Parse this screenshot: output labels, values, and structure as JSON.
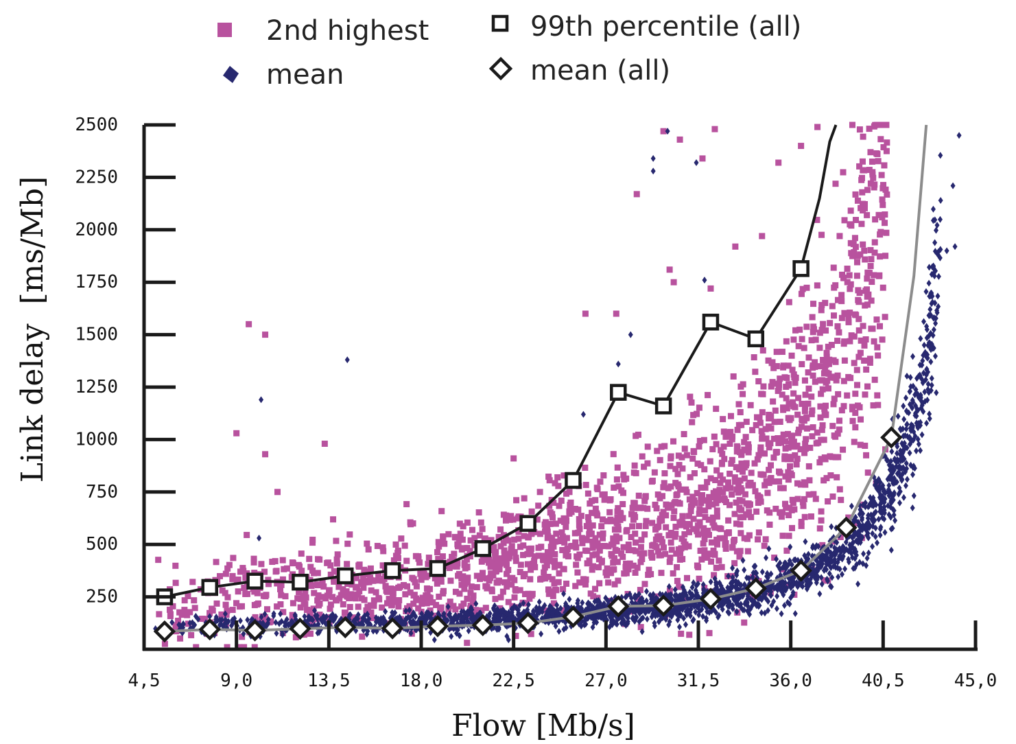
{
  "chart_data": {
    "type": "scatter",
    "xlabel": "Flow [Mb/s]",
    "ylabel": "Link delay  [ms/Mb]",
    "xlim": [
      4.5,
      45.0
    ],
    "ylim": [
      0,
      2500
    ],
    "x_ticks": [
      4.5,
      9.0,
      13.5,
      18.0,
      22.5,
      27.0,
      31.5,
      36.0,
      40.5,
      45.0
    ],
    "x_tick_labels": [
      "4,5",
      "9,0",
      "13,5",
      "18,0",
      "22,5",
      "27,0",
      "31,5",
      "36,0",
      "40,5",
      "45,0"
    ],
    "y_ticks": [
      250,
      500,
      750,
      1000,
      1250,
      1500,
      1750,
      2000,
      2250,
      2500
    ],
    "y_tick_labels": [
      "250",
      "500",
      "750",
      "1000",
      "1250",
      "1500",
      "1750",
      "2000",
      "2250",
      "2500"
    ],
    "grid": false,
    "legend_position": "top",
    "colors": {
      "second_highest": "#b8529e",
      "mean": "#27286f",
      "line_99": "#1a1a1a",
      "line_mean_all": "#8c8c8c"
    },
    "series": [
      {
        "name": "2nd highest",
        "kind": "scatter",
        "marker": "square",
        "color": "#b8529e",
        "trend": [
          [
            5.0,
            180
          ],
          [
            7.0,
            220
          ],
          [
            9.0,
            250
          ],
          [
            11.0,
            260
          ],
          [
            13.0,
            270
          ],
          [
            15.0,
            290
          ],
          [
            17.0,
            310
          ],
          [
            19.0,
            330
          ],
          [
            21.0,
            360
          ],
          [
            23.0,
            420
          ],
          [
            25.0,
            480
          ],
          [
            27.0,
            530
          ],
          [
            29.0,
            580
          ],
          [
            31.0,
            650
          ],
          [
            33.0,
            760
          ],
          [
            35.0,
            900
          ],
          [
            36.5,
            1050
          ],
          [
            38.0,
            1250
          ],
          [
            39.0,
            1500
          ],
          [
            39.8,
            1800
          ],
          [
            40.5,
            2100
          ]
        ],
        "outliers": [
          [
            9.6,
            1550
          ],
          [
            10.4,
            1500
          ],
          [
            9.0,
            1030
          ],
          [
            10.4,
            930
          ],
          [
            11.0,
            750
          ],
          [
            13.3,
            980
          ],
          [
            9.5,
            545
          ],
          [
            17.6,
            600
          ],
          [
            22.5,
            910
          ],
          [
            26.0,
            1600
          ],
          [
            27.5,
            1600
          ],
          [
            28.5,
            2170
          ],
          [
            29.8,
            2470
          ],
          [
            30.6,
            2430
          ],
          [
            30.1,
            1810
          ],
          [
            31.7,
            2340
          ],
          [
            32.3,
            2480
          ],
          [
            33.3,
            1920
          ],
          [
            34.6,
            1970
          ],
          [
            35.4,
            2320
          ],
          [
            37.3,
            2490
          ],
          [
            36.5,
            2400
          ],
          [
            32.1,
            1720
          ],
          [
            30.3,
            1750
          ]
        ]
      },
      {
        "name": "mean",
        "kind": "scatter",
        "marker": "diamond",
        "color": "#27286f",
        "trend": [
          [
            5.0,
            110
          ],
          [
            9.0,
            120
          ],
          [
            13.5,
            125
          ],
          [
            18.0,
            130
          ],
          [
            22.5,
            145
          ],
          [
            27.0,
            175
          ],
          [
            29.0,
            190
          ],
          [
            31.0,
            215
          ],
          [
            33.0,
            250
          ],
          [
            35.0,
            300
          ],
          [
            37.0,
            380
          ],
          [
            38.5,
            470
          ],
          [
            39.5,
            570
          ],
          [
            40.5,
            720
          ],
          [
            41.3,
            900
          ],
          [
            42.0,
            1050
          ],
          [
            42.6,
            1400
          ],
          [
            43.2,
            1800
          ],
          [
            43.8,
            2200
          ]
        ],
        "outliers": [
          [
            14.4,
            1380
          ],
          [
            10.2,
            1190
          ],
          [
            10.1,
            530
          ],
          [
            30.0,
            2470
          ],
          [
            29.3,
            2340
          ],
          [
            29.3,
            2280
          ],
          [
            31.4,
            2320
          ],
          [
            31.8,
            1760
          ],
          [
            28.2,
            1500
          ],
          [
            25.9,
            1120
          ],
          [
            27.6,
            1360
          ],
          [
            43.3,
            2140
          ],
          [
            43.6,
            1900
          ],
          [
            43.9,
            2210
          ],
          [
            44.2,
            2450
          ],
          [
            44.0,
            1920
          ],
          [
            43.0,
            1780
          ],
          [
            42.5,
            1450
          ]
        ]
      },
      {
        "name": "99th percentile (all)",
        "kind": "line",
        "marker": "square-open",
        "color": "#1a1a1a",
        "points": [
          [
            5.5,
            250
          ],
          [
            7.7,
            295
          ],
          [
            9.9,
            325
          ],
          [
            12.1,
            320
          ],
          [
            14.3,
            350
          ],
          [
            16.6,
            375
          ],
          [
            18.8,
            385
          ],
          [
            21.0,
            480
          ],
          [
            23.2,
            600
          ],
          [
            25.4,
            805
          ],
          [
            27.6,
            1225
          ],
          [
            29.8,
            1160
          ],
          [
            32.1,
            1560
          ],
          [
            34.3,
            1480
          ],
          [
            36.5,
            1815
          ]
        ],
        "extension": [
          [
            37.4,
            2150
          ],
          [
            37.9,
            2420
          ],
          [
            38.2,
            2500
          ]
        ]
      },
      {
        "name": "mean (all)",
        "kind": "line",
        "marker": "diamond-open",
        "color": "#8c8c8c",
        "points": [
          [
            5.5,
            85
          ],
          [
            7.7,
            95
          ],
          [
            9.9,
            90
          ],
          [
            12.1,
            98
          ],
          [
            14.3,
            105
          ],
          [
            16.6,
            100
          ],
          [
            18.8,
            110
          ],
          [
            21.0,
            115
          ],
          [
            23.2,
            125
          ],
          [
            25.4,
            155
          ],
          [
            27.6,
            205
          ],
          [
            29.8,
            208
          ],
          [
            32.1,
            240
          ],
          [
            34.3,
            290
          ],
          [
            36.5,
            375
          ],
          [
            38.7,
            580
          ],
          [
            40.9,
            1010
          ]
        ],
        "extension": [
          [
            42.0,
            1780
          ],
          [
            42.6,
            2500
          ]
        ]
      }
    ]
  }
}
